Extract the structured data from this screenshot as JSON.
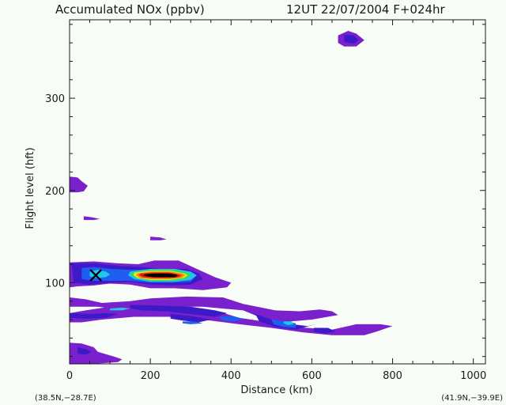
{
  "chart_data": {
    "type": "contour",
    "title": "Accumulated NOx  (ppbv)",
    "subtitle": "12UT 22/07/2004  F+024hr",
    "xlabel": "Distance  (km)",
    "ylabel": "Flight level  (hft)",
    "xlim": [
      0,
      1030
    ],
    "ylim": [
      12,
      385
    ],
    "x_ticks": [
      0,
      200,
      400,
      600,
      800,
      1000
    ],
    "y_ticks": [
      100,
      200,
      300
    ],
    "left_endpoint": "(38.5N,−28.7E)",
    "right_endpoint": "(41.9N,−39.9E)",
    "marker": {
      "symbol": "X",
      "x": 65,
      "y": 108
    },
    "colors": {
      "background": "#f7fcf7",
      "level1": "#7a20cc",
      "level2": "#3c1ac8",
      "level3": "#1f5ef0",
      "level4": "#20c8e8",
      "level5": "#2ee04a",
      "level6": "#f0e020",
      "level7": "#f08a10",
      "level8": "#e01818",
      "level9": "#000000"
    },
    "regions": [
      {
        "level": 1,
        "points": [
          [
            0,
            84
          ],
          [
            40,
            82
          ],
          [
            80,
            78
          ],
          [
            150,
            80
          ],
          [
            200,
            83
          ],
          [
            290,
            85
          ],
          [
            380,
            84
          ],
          [
            430,
            77
          ],
          [
            510,
            70
          ],
          [
            570,
            69
          ],
          [
            620,
            71
          ],
          [
            650,
            69
          ],
          [
            665,
            65
          ],
          [
            600,
            60
          ],
          [
            520,
            57
          ],
          [
            480,
            61
          ],
          [
            430,
            70
          ],
          [
            330,
            74
          ],
          [
            250,
            74
          ],
          [
            180,
            72
          ],
          [
            120,
            71
          ],
          [
            70,
            74
          ],
          [
            40,
            74
          ],
          [
            0,
            74
          ]
        ]
      },
      {
        "level": 1,
        "points": [
          [
            0,
            67
          ],
          [
            40,
            70
          ],
          [
            100,
            74
          ],
          [
            160,
            76
          ],
          [
            230,
            75
          ],
          [
            300,
            73
          ],
          [
            360,
            70
          ],
          [
            420,
            62
          ],
          [
            480,
            58
          ],
          [
            510,
            56
          ],
          [
            560,
            52
          ],
          [
            620,
            50
          ],
          [
            650,
            49
          ],
          [
            690,
            53
          ],
          [
            710,
            55
          ],
          [
            770,
            55
          ],
          [
            800,
            53
          ],
          [
            760,
            47
          ],
          [
            730,
            43
          ],
          [
            650,
            43
          ],
          [
            580,
            46
          ],
          [
            500,
            51
          ],
          [
            420,
            55
          ],
          [
            330,
            60
          ],
          [
            250,
            63
          ],
          [
            160,
            63
          ],
          [
            80,
            60
          ],
          [
            30,
            57
          ],
          [
            0,
            57
          ]
        ]
      },
      {
        "level": 1,
        "points": [
          [
            0,
            122
          ],
          [
            60,
            123
          ],
          [
            120,
            121
          ],
          [
            170,
            120
          ],
          [
            210,
            124
          ],
          [
            270,
            124
          ],
          [
            310,
            116
          ],
          [
            360,
            106
          ],
          [
            400,
            100
          ],
          [
            390,
            95
          ],
          [
            330,
            92
          ],
          [
            260,
            94
          ],
          [
            200,
            94
          ],
          [
            150,
            98
          ],
          [
            100,
            99
          ],
          [
            60,
            97
          ],
          [
            20,
            96
          ],
          [
            0,
            95
          ]
        ]
      },
      {
        "level": 1,
        "points": [
          [
            0,
            35
          ],
          [
            30,
            34
          ],
          [
            60,
            30
          ],
          [
            70,
            25
          ],
          [
            110,
            20
          ],
          [
            130,
            17
          ],
          [
            120,
            14
          ],
          [
            60,
            12
          ],
          [
            0,
            12
          ]
        ]
      },
      {
        "level": 1,
        "points": [
          [
            0,
            215
          ],
          [
            20,
            214
          ],
          [
            30,
            210
          ],
          [
            45,
            205
          ],
          [
            35,
            199
          ],
          [
            20,
            198
          ],
          [
            0,
            198
          ]
        ]
      },
      {
        "level": 1,
        "points": [
          [
            35,
            172
          ],
          [
            55,
            171
          ],
          [
            75,
            169
          ],
          [
            60,
            168
          ],
          [
            35,
            168
          ]
        ]
      },
      {
        "level": 1,
        "points": [
          [
            200,
            150
          ],
          [
            225,
            149
          ],
          [
            240,
            147
          ],
          [
            225,
            146
          ],
          [
            200,
            146
          ]
        ]
      },
      {
        "level": 1,
        "points": [
          [
            665,
            368
          ],
          [
            690,
            373
          ],
          [
            710,
            370
          ],
          [
            730,
            363
          ],
          [
            710,
            356
          ],
          [
            680,
            356
          ],
          [
            665,
            360
          ]
        ]
      },
      {
        "level": 2,
        "points": [
          [
            5,
            121
          ],
          [
            60,
            121
          ],
          [
            130,
            118
          ],
          [
            180,
            117
          ],
          [
            230,
            115
          ],
          [
            290,
            115
          ],
          [
            320,
            110
          ],
          [
            330,
            104
          ],
          [
            300,
            98
          ],
          [
            250,
            97
          ],
          [
            200,
            98
          ],
          [
            150,
            101
          ],
          [
            100,
            100
          ],
          [
            50,
            98
          ],
          [
            10,
            100
          ]
        ]
      },
      {
        "level": 2,
        "points": [
          [
            150,
            76
          ],
          [
            230,
            75
          ],
          [
            300,
            74
          ],
          [
            360,
            70
          ],
          [
            390,
            67
          ],
          [
            360,
            63
          ],
          [
            300,
            66
          ],
          [
            240,
            69
          ],
          [
            180,
            70
          ],
          [
            150,
            72
          ]
        ]
      },
      {
        "level": 2,
        "points": [
          [
            250,
            66
          ],
          [
            300,
            64
          ],
          [
            350,
            60
          ],
          [
            320,
            57
          ],
          [
            280,
            59
          ],
          [
            250,
            61
          ]
        ]
      },
      {
        "level": 2,
        "points": [
          [
            460,
            66
          ],
          [
            500,
            60
          ],
          [
            550,
            55
          ],
          [
            590,
            53
          ],
          [
            610,
            55
          ],
          [
            560,
            49
          ],
          [
            510,
            52
          ],
          [
            470,
            58
          ]
        ]
      },
      {
        "level": 2,
        "points": [
          [
            0,
            67
          ],
          [
            50,
            66
          ],
          [
            90,
            67
          ],
          [
            120,
            66
          ],
          [
            90,
            62
          ],
          [
            40,
            61
          ],
          [
            0,
            62
          ]
        ]
      },
      {
        "level": 2,
        "points": [
          [
            20,
            30
          ],
          [
            40,
            28
          ],
          [
            55,
            25
          ],
          [
            40,
            22
          ],
          [
            20,
            23
          ]
        ]
      },
      {
        "level": 2,
        "points": [
          [
            605,
            51
          ],
          [
            640,
            51
          ],
          [
            660,
            47
          ],
          [
            630,
            45
          ],
          [
            605,
            47
          ]
        ]
      },
      {
        "level": 2,
        "points": [
          [
            680,
            369
          ],
          [
            705,
            368
          ],
          [
            715,
            363
          ],
          [
            705,
            359
          ],
          [
            680,
            361
          ]
        ]
      },
      {
        "level": 3,
        "points": [
          [
            30,
            116
          ],
          [
            60,
            117
          ],
          [
            100,
            115
          ],
          [
            140,
            114
          ],
          [
            180,
            114
          ],
          [
            230,
            114
          ],
          [
            290,
            112
          ],
          [
            315,
            108
          ],
          [
            300,
            101
          ],
          [
            250,
            100
          ],
          [
            200,
            100
          ],
          [
            150,
            102
          ],
          [
            100,
            102
          ],
          [
            60,
            102
          ],
          [
            30,
            104
          ]
        ]
      },
      {
        "level": 3,
        "points": [
          [
            370,
            63
          ],
          [
            400,
            64
          ],
          [
            430,
            61
          ],
          [
            410,
            58
          ],
          [
            380,
            59
          ]
        ]
      },
      {
        "level": 3,
        "points": [
          [
            500,
            60
          ],
          [
            540,
            58
          ],
          [
            560,
            56
          ],
          [
            560,
            51
          ],
          [
            530,
            52
          ],
          [
            505,
            55
          ]
        ]
      },
      {
        "level": 3,
        "points": [
          [
            280,
            58
          ],
          [
            310,
            58
          ],
          [
            330,
            56
          ],
          [
            300,
            55
          ],
          [
            280,
            56
          ]
        ]
      },
      {
        "level": 4,
        "points": [
          [
            50,
            112
          ],
          [
            70,
            114
          ],
          [
            90,
            112
          ],
          [
            100,
            109
          ],
          [
            90,
            106
          ],
          [
            65,
            105
          ],
          [
            50,
            107
          ]
        ]
      },
      {
        "level": 4,
        "points": [
          [
            150,
            112
          ],
          [
            200,
            115
          ],
          [
            260,
            115
          ],
          [
            300,
            112
          ],
          [
            315,
            108
          ],
          [
            300,
            103
          ],
          [
            260,
            101
          ],
          [
            200,
            101
          ],
          [
            160,
            104
          ],
          [
            145,
            108
          ]
        ]
      },
      {
        "level": 4,
        "points": [
          [
            530,
            58
          ],
          [
            550,
            58
          ],
          [
            555,
            55
          ],
          [
            540,
            54
          ],
          [
            530,
            56
          ]
        ]
      },
      {
        "level": 4,
        "points": [
          [
            100,
            72
          ],
          [
            130,
            73
          ],
          [
            150,
            72
          ],
          [
            130,
            70
          ],
          [
            100,
            70
          ]
        ]
      },
      {
        "level": 5,
        "points": [
          [
            155,
            111
          ],
          [
            200,
            114
          ],
          [
            255,
            114
          ],
          [
            292,
            111
          ],
          [
            300,
            108
          ],
          [
            288,
            104
          ],
          [
            250,
            102
          ],
          [
            200,
            102
          ],
          [
            165,
            105
          ],
          [
            152,
            108
          ]
        ]
      },
      {
        "level": 6,
        "points": [
          [
            160,
            111
          ],
          [
            200,
            113
          ],
          [
            250,
            113
          ],
          [
            285,
            110
          ],
          [
            293,
            108
          ],
          [
            283,
            105
          ],
          [
            250,
            103
          ],
          [
            200,
            103
          ],
          [
            168,
            105
          ],
          [
            158,
            108
          ]
        ]
      },
      {
        "level": 7,
        "points": [
          [
            168,
            110
          ],
          [
            200,
            112
          ],
          [
            250,
            112
          ],
          [
            278,
            110
          ],
          [
            286,
            108
          ],
          [
            277,
            105
          ],
          [
            250,
            104
          ],
          [
            200,
            104
          ],
          [
            175,
            105
          ],
          [
            165,
            108
          ]
        ]
      },
      {
        "level": 8,
        "points": [
          [
            175,
            110
          ],
          [
            205,
            111
          ],
          [
            248,
            111
          ],
          [
            270,
            109
          ],
          [
            278,
            108
          ],
          [
            270,
            106
          ],
          [
            248,
            105
          ],
          [
            205,
            105
          ],
          [
            180,
            106
          ],
          [
            172,
            108
          ]
        ]
      },
      {
        "level": 9,
        "points": [
          [
            185,
            109
          ],
          [
            210,
            110
          ],
          [
            245,
            110
          ],
          [
            262,
            109
          ],
          [
            268,
            108
          ],
          [
            262,
            106
          ],
          [
            245,
            106
          ],
          [
            210,
            106
          ],
          [
            190,
            107
          ],
          [
            183,
            108
          ]
        ]
      }
    ]
  }
}
